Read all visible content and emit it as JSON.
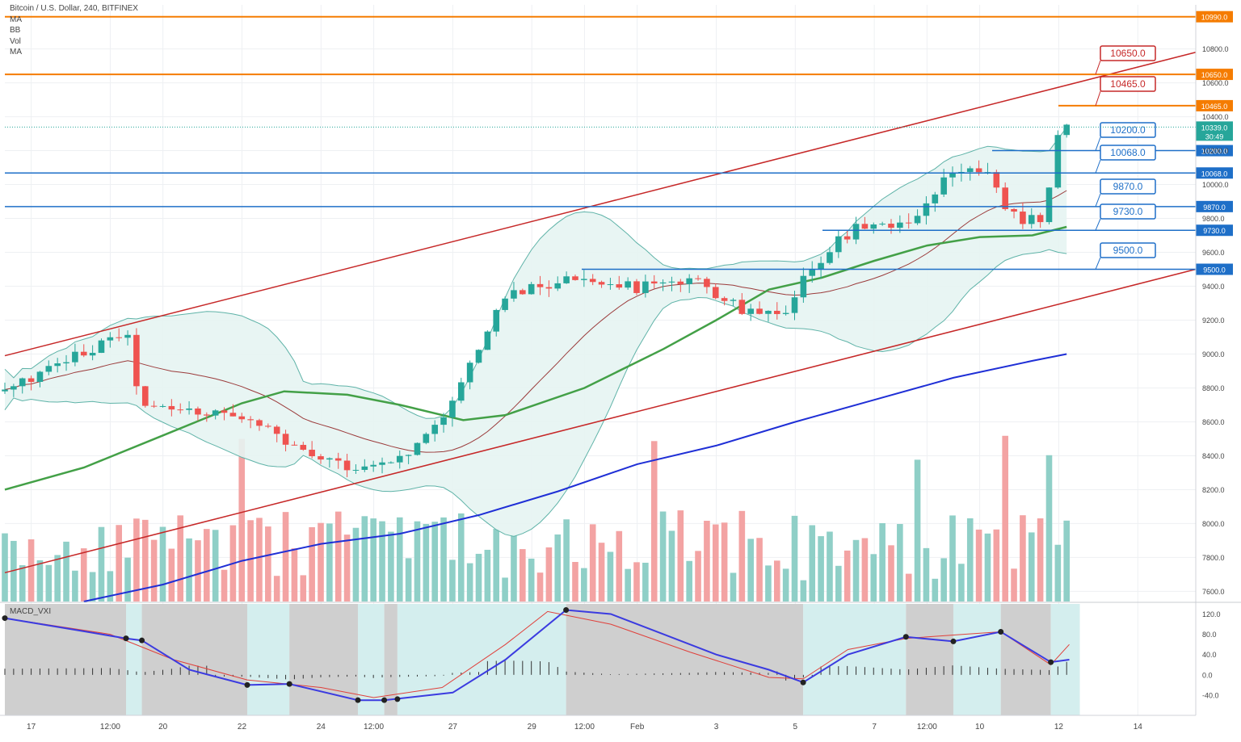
{
  "header": {
    "symbol": "Bitcoin / U.S. Dollar, 240, BITFINEX",
    "indicators": [
      "MA",
      "BB",
      "Vol",
      "MA"
    ]
  },
  "macd_label": "MACD_VXI",
  "colors": {
    "up": "#26a69a",
    "down": "#ef5350",
    "up_vol": "#8fcfc7",
    "down_vol": "#f3a3a3",
    "orange": "#f57c00",
    "blue_level": "#1e6fc8",
    "channel": "#c62828",
    "ma_green": "#43a047",
    "ma_blue": "#1f2fd6",
    "bb_fill": "#e6f4f2",
    "bb_line": "#5fb3a8",
    "mid_line": "#9b3b3b",
    "macd_blue": "#3b3be0",
    "macd_red": "#e0403b",
    "bg_gray": "#cfcfcf",
    "bg_teal": "#d4eeee"
  },
  "chart_data": {
    "type": "candlestick",
    "title": "Bitcoin / U.S. Dollar, 240, BITFINEX",
    "y_axis": {
      "range": [
        7540,
        11060
      ],
      "ticks": [
        7600,
        7800,
        8000,
        8200,
        8400,
        8600,
        8800,
        9000,
        9200,
        9400,
        9600,
        9800,
        10000,
        10200,
        10400,
        10600,
        10800
      ],
      "tick_labels": [
        "7600.0",
        "7800.0",
        "8000.0",
        "8200.0",
        "8400.0",
        "8600.0",
        "8800.0",
        "9000.0",
        "9200.0",
        "9400.0",
        "9600.0",
        "9800.0",
        "10000.0",
        "10200.0",
        "10400.0",
        "10600.0",
        "10800.0"
      ]
    },
    "x_axis": {
      "ticks": [
        0.5,
        2.0,
        3.5,
        5.0,
        6.5,
        8.0,
        9.5,
        11.0,
        12.5,
        14.0,
        15.5,
        17.0,
        18.5,
        20.0,
        21.5,
        23.0,
        24.5,
        26.0,
        27.5,
        29.0,
        30.5
      ],
      "tick_labels": [
        "17",
        "12:00",
        "20",
        "22",
        "24",
        "12:00",
        "27",
        "29",
        "12:00",
        "Feb",
        "3",
        "5",
        "7",
        "12:00",
        "10",
        "12",
        "14"
      ],
      "tick_positions": [
        0.5,
        2.0,
        3.0,
        4.5,
        6.0,
        7.0,
        8.5,
        10.0,
        11.0,
        12.0,
        13.5,
        15.0,
        16.5,
        17.5,
        18.5,
        20.0,
        21.5
      ]
    },
    "candles": [],
    "key_points": [
      {
        "t": 0.0,
        "close": 8780
      },
      {
        "t": 2.3,
        "close": 9130
      },
      {
        "t": 2.6,
        "close": 8680
      },
      {
        "t": 4.6,
        "close": 8640
      },
      {
        "t": 5.6,
        "close": 8410
      },
      {
        "t": 6.9,
        "close": 8320
      },
      {
        "t": 7.8,
        "close": 8450
      },
      {
        "t": 8.5,
        "close": 8720
      },
      {
        "t": 9.5,
        "close": 9350
      },
      {
        "t": 11.0,
        "close": 9460
      },
      {
        "t": 12.0,
        "close": 9390
      },
      {
        "t": 13.2,
        "close": 9420
      },
      {
        "t": 14.0,
        "close": 9260
      },
      {
        "t": 14.8,
        "close": 9200
      },
      {
        "t": 15.3,
        "close": 9520
      },
      {
        "t": 16.2,
        "close": 9770
      },
      {
        "t": 17.2,
        "close": 9760
      },
      {
        "t": 18.0,
        "close": 10080
      },
      {
        "t": 18.6,
        "close": 10110
      },
      {
        "t": 19.0,
        "close": 9820
      },
      {
        "t": 19.7,
        "close": 9780
      },
      {
        "t": 19.95,
        "close": 10270
      },
      {
        "t": 20.15,
        "close": 10330
      }
    ],
    "horizontal_levels": [
      {
        "price": 10990.0,
        "label": "10990.0",
        "color": "orange"
      },
      {
        "price": 10650.0,
        "label": "10650.0",
        "color": "orange",
        "callout": "10650.0"
      },
      {
        "price": 10465.0,
        "label": "10465.0",
        "color": "orange",
        "callout": "10465.0"
      },
      {
        "price": 10200.0,
        "label": "10200.0",
        "color": "blue_level",
        "callout": "10200.0"
      },
      {
        "price": 10068.0,
        "label": "10068.0",
        "color": "blue_level",
        "callout": "10068.0"
      },
      {
        "price": 9870.0,
        "label": "9870.0",
        "color": "blue_level",
        "callout": "9870.0"
      },
      {
        "price": 9730.0,
        "label": "9730.0",
        "color": "blue_level",
        "callout": "9730.0"
      },
      {
        "price": 9500.0,
        "label": "9500.0",
        "color": "blue_level",
        "callout": "9500.0"
      }
    ],
    "last_price": {
      "value": "10339.0",
      "countdown": "30:49"
    },
    "channel_lines": [
      {
        "p1": {
          "t": 0.0,
          "price": 8990
        },
        "p2": {
          "t": 22.6,
          "price": 10780
        }
      },
      {
        "p1": {
          "t": 0.0,
          "price": 7710
        },
        "p2": {
          "t": 22.6,
          "price": 9500
        }
      }
    ],
    "moving_averages": {
      "green": [
        [
          0,
          8200
        ],
        [
          1.5,
          8330
        ],
        [
          3,
          8520
        ],
        [
          4.5,
          8710
        ],
        [
          5.3,
          8780
        ],
        [
          6.5,
          8760
        ],
        [
          7.5,
          8700
        ],
        [
          8.7,
          8610
        ],
        [
          9.5,
          8640
        ],
        [
          11,
          8800
        ],
        [
          12.5,
          9030
        ],
        [
          13.5,
          9200
        ],
        [
          14.5,
          9380
        ],
        [
          15.5,
          9450
        ],
        [
          16.5,
          9550
        ],
        [
          17.5,
          9640
        ],
        [
          18.5,
          9690
        ],
        [
          19.5,
          9700
        ],
        [
          20.15,
          9750
        ]
      ],
      "blue": [
        [
          1.5,
          7540
        ],
        [
          3,
          7640
        ],
        [
          4.5,
          7780
        ],
        [
          6,
          7880
        ],
        [
          7.5,
          7940
        ],
        [
          9,
          8050
        ],
        [
          10.5,
          8190
        ],
        [
          12,
          8350
        ],
        [
          13.5,
          8460
        ],
        [
          15,
          8600
        ],
        [
          16.5,
          8730
        ],
        [
          18,
          8860
        ],
        [
          19.5,
          8960
        ],
        [
          20.15,
          9000
        ]
      ]
    },
    "macd": {
      "y_range": [
        -80,
        140
      ],
      "ticks": [
        -40,
        0,
        40,
        80,
        120
      ],
      "tick_labels": [
        "-40.0",
        "0.0",
        "40.0",
        "80.0",
        "120.0"
      ]
    }
  }
}
